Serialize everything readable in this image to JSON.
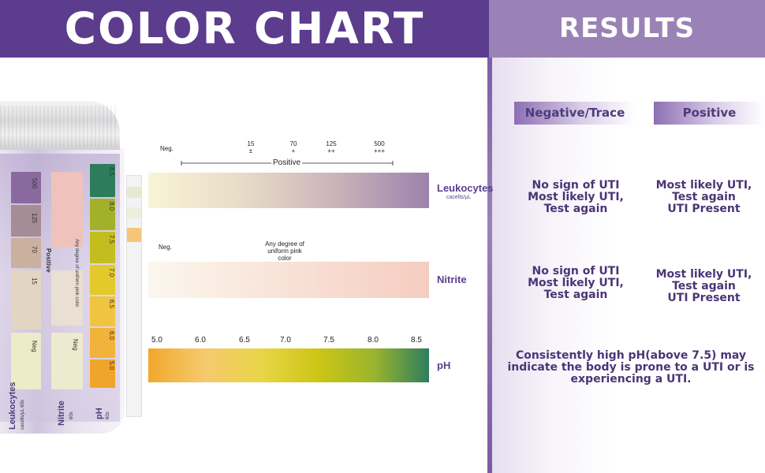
{
  "header": {
    "title": "COLOR CHART",
    "results_title": "RESULTS"
  },
  "bottle": {
    "labels": {
      "leukocytes": "Leukocytes",
      "leuk_unit": "cacells/µL 60s",
      "nitrite": "Nitrite",
      "nitrite_time": "60s",
      "ph": "pH",
      "ph_time": "60s"
    },
    "positive": "Positive",
    "pink_note": "Any degree of uniform pink color",
    "leuk_values": [
      "500",
      "125",
      "70",
      "15",
      "Neg"
    ],
    "nitrite_neg": "Neg",
    "ph_values": [
      "8.5",
      "8.0",
      "7.5",
      "7.0",
      "6.5",
      "6.0",
      "5.0"
    ]
  },
  "chart": {
    "leukocytes": {
      "neg_label": "Neg.",
      "ticks": [
        {
          "value": "15",
          "sign": "±"
        },
        {
          "value": "70",
          "sign": "+"
        },
        {
          "value": "125",
          "sign": "++"
        },
        {
          "value": "500",
          "sign": "+++"
        }
      ],
      "positive_label": "Positive",
      "name": "Leukocytes",
      "unit": "cacells/µL",
      "colors": [
        "#f8f4d6",
        "#e8dcc8",
        "#cbb3b9",
        "#9b83ad"
      ]
    },
    "nitrite": {
      "neg_label": "Neg.",
      "note": "Any degree of uniform pink color",
      "name": "Nitrite",
      "colors": [
        "#fbf7ee",
        "#f6ccc0"
      ]
    },
    "ph": {
      "ticks": [
        "5.0",
        "6.0",
        "6.5",
        "7.0",
        "7.5",
        "8.0",
        "8.5"
      ],
      "name": "pH",
      "colors": [
        "#f2a82c",
        "#f6c96d",
        "#e9d548",
        "#cdc616",
        "#9cb52c",
        "#2e7e5e"
      ]
    }
  },
  "results": {
    "negative_header": "Negative/Trace",
    "positive_header": "Positive",
    "leukocytes": {
      "negative": [
        "No sign of UTI",
        "Most likely UTI,",
        "Test again"
      ],
      "positive": [
        "Most likely UTI,",
        "Test again",
        "UTI Present"
      ]
    },
    "nitrite": {
      "negative": [
        "No sign of UTI",
        "Most likely UTI,",
        "Test again"
      ],
      "positive": [
        "Most likely UTI,",
        "Test again",
        "UTI Present"
      ]
    },
    "ph_note": [
      "Consistently high pH(above 7.5) may",
      "indicate the body is prone to a UTI or is",
      "experiencing a UTI."
    ]
  },
  "colors": {
    "header_dark": "#5b3c8d",
    "header_light": "#9b82b6",
    "accent_text": "#4a3576"
  }
}
